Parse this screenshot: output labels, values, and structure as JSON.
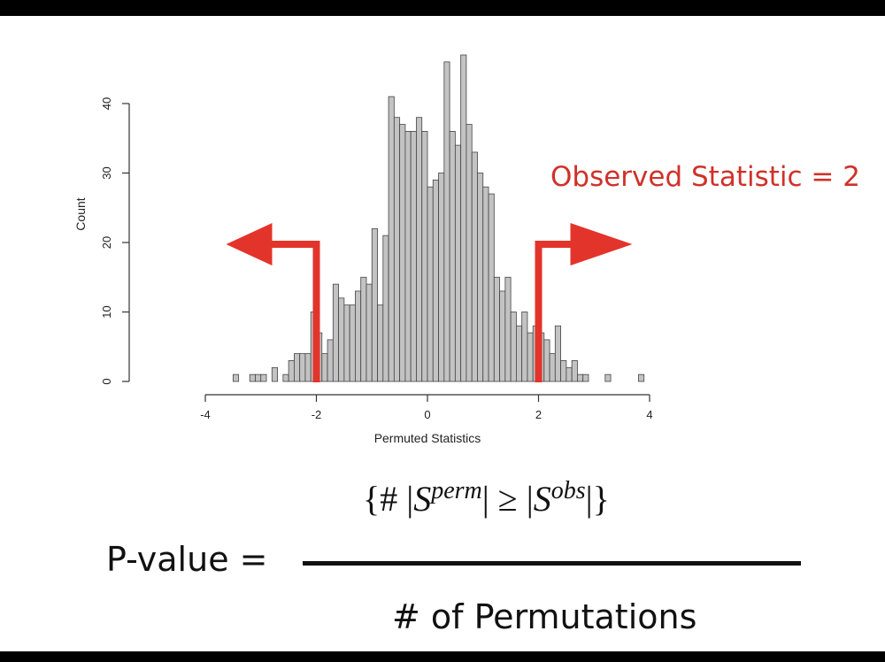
{
  "observed_label": "Observed Statistic = 2",
  "formula": {
    "pvalue_label": "P-value =",
    "numerator": {
      "open": "{# |",
      "s1": "S",
      "s1_sup": "perm",
      "mid": "| ≥ |",
      "s2": "S",
      "s2_sup": "obs",
      "close": "|}"
    },
    "denominator": "# of Permutations"
  },
  "colors": {
    "bar_fill": "#c3c3c3",
    "bar_stroke": "#444444",
    "arrow": "#e3342b",
    "text_red": "#d0312a"
  },
  "chart_data": {
    "type": "bar",
    "title": "",
    "xlabel": "Permuted Statistics",
    "ylabel": "Count",
    "xlim": [
      -4,
      4
    ],
    "ylim": [
      0,
      50
    ],
    "x_ticks": [
      -4,
      -2,
      0,
      2,
      4
    ],
    "y_ticks": [
      0,
      10,
      20,
      30,
      40
    ],
    "bin_width": 0.1,
    "bin_starts": [
      -3.5,
      -3.4,
      -3.3,
      -3.2,
      -3.1,
      -3.0,
      -2.9,
      -2.8,
      -2.7,
      -2.6,
      -2.5,
      -2.4,
      -2.3,
      -2.2,
      -2.1,
      -2.0,
      -1.9,
      -1.8,
      -1.7,
      -1.6,
      -1.5,
      -1.4,
      -1.3,
      -1.2,
      -1.1,
      -1.0,
      -0.9,
      -0.8,
      -0.7,
      -0.6,
      -0.5,
      -0.4,
      -0.3,
      -0.2,
      -0.1,
      0.0,
      0.1,
      0.2,
      0.3,
      0.4,
      0.5,
      0.6,
      0.7,
      0.8,
      0.9,
      1.0,
      1.1,
      1.2,
      1.3,
      1.4,
      1.5,
      1.6,
      1.7,
      1.8,
      1.9,
      2.0,
      2.1,
      2.2,
      2.3,
      2.4,
      2.5,
      2.6,
      2.7,
      2.8,
      2.9,
      3.0,
      3.1,
      3.2,
      3.3,
      3.4,
      3.5,
      3.6,
      3.7,
      3.8
    ],
    "values": [
      1,
      0,
      0,
      1,
      1,
      1,
      0,
      2,
      0,
      1,
      3,
      4,
      4,
      4,
      10,
      7,
      4,
      6,
      14,
      12,
      11,
      11,
      13,
      15,
      14,
      22,
      11,
      21,
      41,
      38,
      37,
      36,
      36,
      38,
      36,
      28,
      29,
      30,
      46,
      36,
      34,
      47,
      37,
      33,
      30,
      28,
      27,
      15,
      13,
      15,
      10,
      8,
      10,
      7,
      8,
      7,
      6,
      4,
      8,
      3,
      2,
      3,
      1,
      1,
      0,
      0,
      0,
      1,
      0,
      0,
      0,
      0,
      0,
      1
    ],
    "cutoffs": [
      -2,
      2
    ],
    "arrow_directions": [
      "left",
      "right"
    ]
  }
}
